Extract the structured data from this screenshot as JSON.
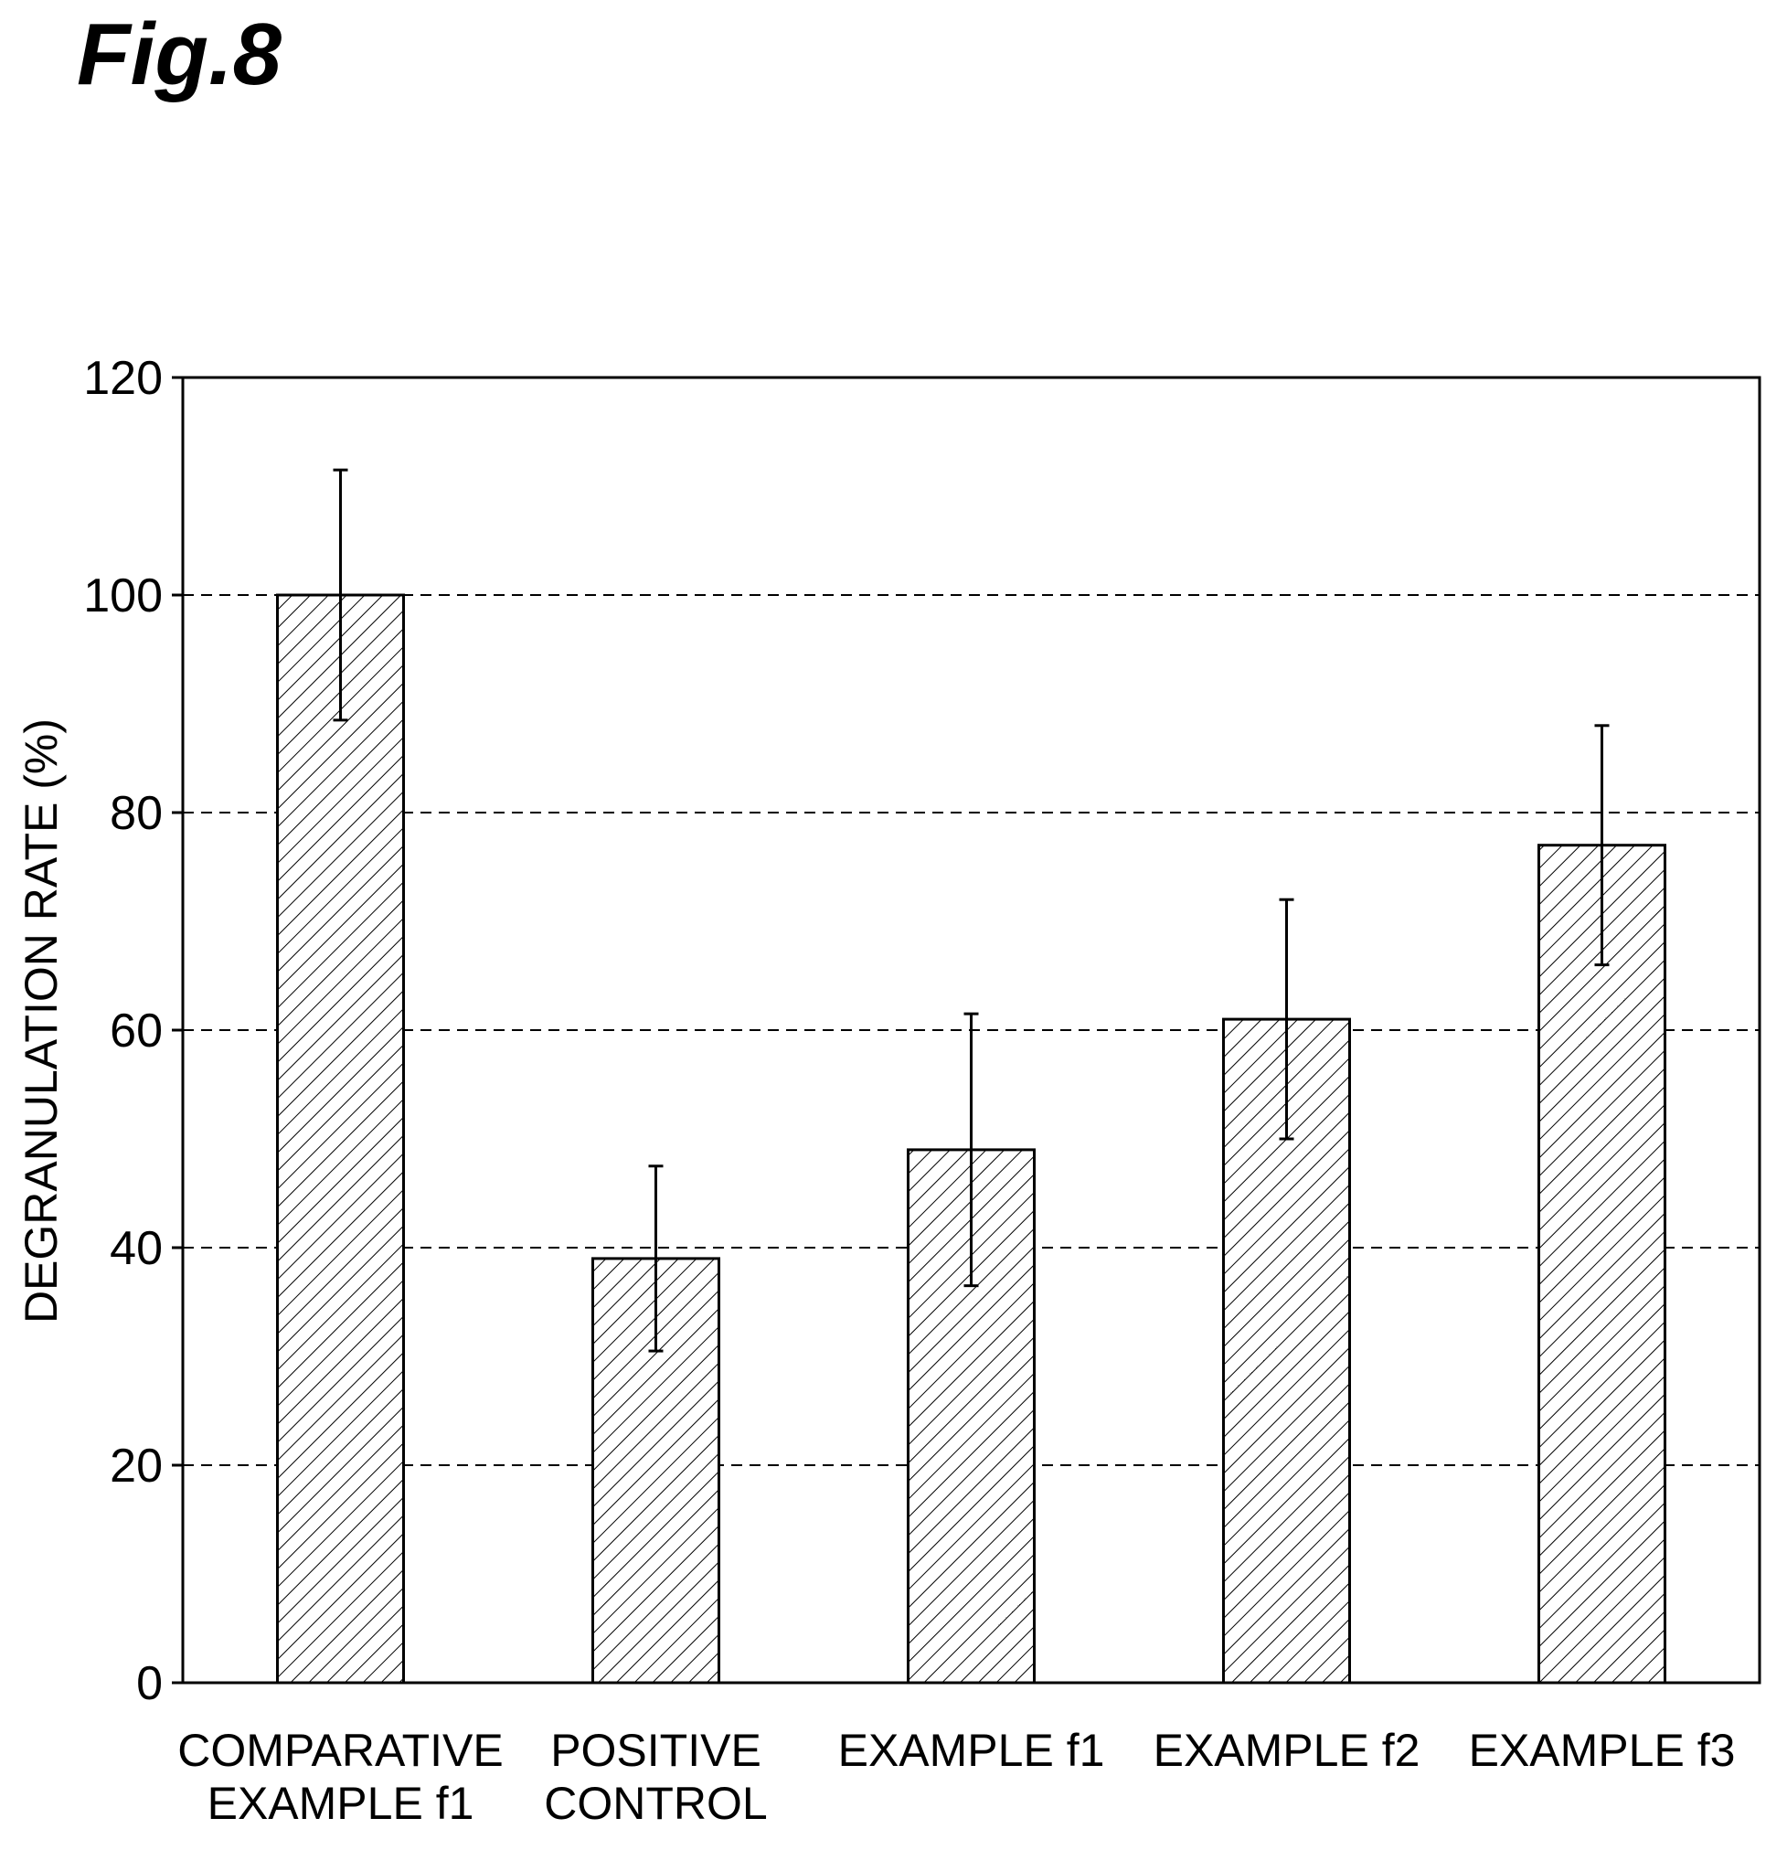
{
  "figure_label": "Fig.8",
  "chart_data": {
    "type": "bar",
    "title": "",
    "xlabel": "",
    "ylabel": "DEGRANULATION RATE (%)",
    "ylim": [
      0,
      120
    ],
    "yticks": [
      0,
      20,
      40,
      60,
      80,
      100,
      120
    ],
    "grid": "horizontal dashed",
    "pattern": "diagonal hatch",
    "categories": [
      [
        "COMPARATIVE",
        "EXAMPLE f1"
      ],
      [
        "POSITIVE",
        "CONTROL"
      ],
      [
        "EXAMPLE f1"
      ],
      [
        "EXAMPLE f2"
      ],
      [
        "EXAMPLE f3"
      ]
    ],
    "values": [
      100,
      39,
      49,
      61,
      77
    ],
    "error_upper": [
      111.5,
      47.5,
      61.5,
      72,
      88
    ],
    "error_lower": [
      88.5,
      30.5,
      36.5,
      50,
      66
    ]
  }
}
